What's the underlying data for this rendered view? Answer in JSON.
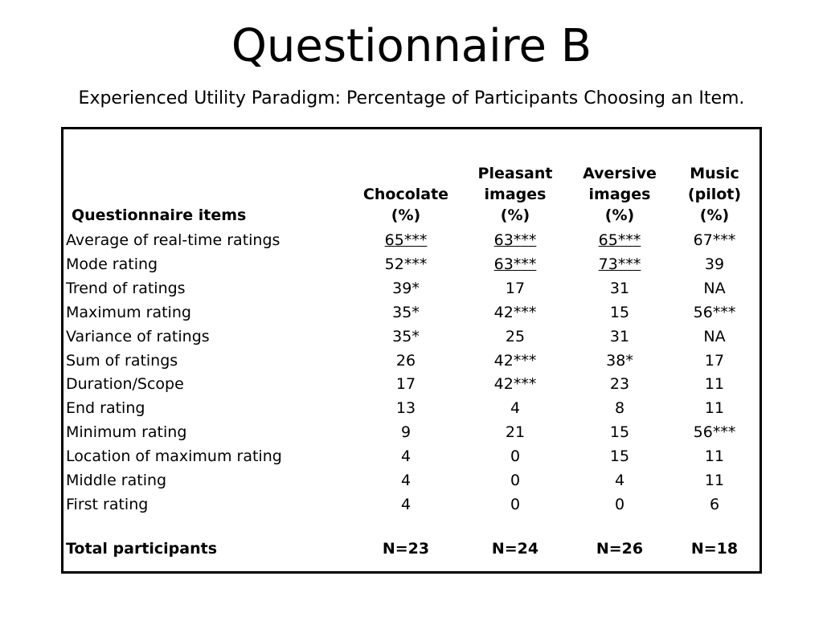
{
  "title": "Questionnaire B",
  "subtitle": "Experienced Utility Paradigm: Percentage of Participants Choosing an Item.",
  "table": {
    "headers": {
      "item": "Questionnaire items",
      "chocolate": [
        "Chocolate",
        "(%)"
      ],
      "pleasant": [
        "Pleasant",
        "images",
        "(%)"
      ],
      "aversive": [
        "Aversive",
        "images",
        "(%)"
      ],
      "music": [
        "Music",
        "(pilot)",
        "(%)"
      ]
    },
    "rows": [
      {
        "item": "Average of real-time ratings",
        "chocolate": "65***",
        "pleasant": "63***",
        "aversive": "65***",
        "music": "67***",
        "underline": [
          "chocolate",
          "pleasant",
          "aversive"
        ]
      },
      {
        "item": "Mode rating",
        "chocolate": "52***",
        "pleasant": "63***",
        "aversive": "73***",
        "music": "39",
        "underline": [
          "pleasant",
          "aversive"
        ]
      },
      {
        "item": "Trend of ratings",
        "chocolate": "39*",
        "pleasant": "17",
        "aversive": "31",
        "music": "NA",
        "underline": []
      },
      {
        "item": "Maximum rating",
        "chocolate": "35*",
        "pleasant": "42***",
        "aversive": "15",
        "music": "56***",
        "underline": []
      },
      {
        "item": "Variance of ratings",
        "chocolate": "35*",
        "pleasant": "25",
        "aversive": "31",
        "music": "NA",
        "underline": []
      },
      {
        "item": "Sum of ratings",
        "chocolate": "26",
        "pleasant": "42***",
        "aversive": "38*",
        "music": "17",
        "underline": []
      },
      {
        "item": "Duration/Scope",
        "chocolate": "17",
        "pleasant": "42***",
        "aversive": "23",
        "music": "11",
        "underline": []
      },
      {
        "item": "End rating",
        "chocolate": "13",
        "pleasant": "4",
        "aversive": "8",
        "music": "11",
        "underline": []
      },
      {
        "item": "Minimum rating",
        "chocolate": "9",
        "pleasant": "21",
        "aversive": "15",
        "music": "56***",
        "underline": []
      },
      {
        "item": "Location of maximum rating",
        "chocolate": "4",
        "pleasant": "0",
        "aversive": "15",
        "music": "11",
        "underline": []
      },
      {
        "item": "Middle rating",
        "chocolate": "4",
        "pleasant": "0",
        "aversive": "4",
        "music": "11",
        "underline": []
      },
      {
        "item": "First rating",
        "chocolate": "4",
        "pleasant": "0",
        "aversive": "0",
        "music": "6",
        "underline": []
      }
    ],
    "total": {
      "item": "Total participants",
      "chocolate": "N=23",
      "pleasant": "N=24",
      "aversive": "N=26",
      "music": "N=18"
    }
  }
}
